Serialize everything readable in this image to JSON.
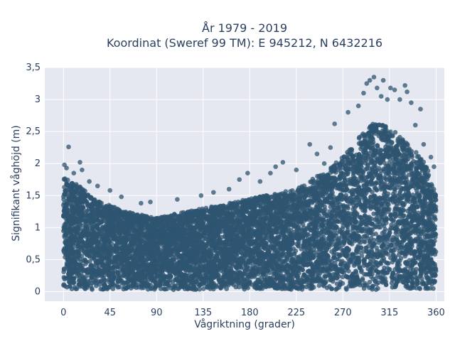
{
  "chart_data": {
    "type": "scatter",
    "title_line1": "År 1979 - 2019",
    "title_line2": "Koordinat (Sweref 99 TM): E 945212, N 6432216",
    "xlabel": "Vågriktning (grader)",
    "ylabel": "Signifikant våghöjd (m)",
    "xlim": [
      -18,
      368
    ],
    "ylim": [
      -0.15,
      3.5
    ],
    "x_ticks": [
      0,
      45,
      90,
      135,
      180,
      225,
      270,
      315,
      360
    ],
    "x_tick_labels": [
      "0",
      "45",
      "90",
      "135",
      "180",
      "225",
      "270",
      "315",
      "360"
    ],
    "y_ticks": [
      0,
      0.5,
      1,
      1.5,
      2,
      2.5,
      3,
      3.5
    ],
    "y_tick_labels": [
      "0",
      "0,5",
      "1",
      "1,5",
      "2",
      "2,5",
      "3",
      "3,5"
    ],
    "grid": true,
    "marker_color": "#2e5470",
    "plot_bg": "#e5e8f0",
    "envelope": {
      "x": [
        0,
        5,
        10,
        20,
        30,
        45,
        60,
        75,
        90,
        105,
        120,
        135,
        150,
        165,
        180,
        195,
        210,
        225,
        240,
        255,
        270,
        285,
        300,
        310,
        320,
        330,
        340,
        350,
        360
      ],
      "upper": [
        1.8,
        1.75,
        1.7,
        1.6,
        1.45,
        1.35,
        1.25,
        1.2,
        1.15,
        1.2,
        1.25,
        1.3,
        1.35,
        1.4,
        1.45,
        1.5,
        1.55,
        1.6,
        1.75,
        1.9,
        2.1,
        2.4,
        2.65,
        2.6,
        2.5,
        2.35,
        2.2,
        2.0,
        1.5
      ]
    },
    "points": [
      {
        "x": 5,
        "y": 2.26
      },
      {
        "x": 1,
        "y": 1.98
      },
      {
        "x": 3,
        "y": 1.93
      },
      {
        "x": 16,
        "y": 2.02
      },
      {
        "x": 18,
        "y": 1.9
      },
      {
        "x": 10,
        "y": 1.85
      },
      {
        "x": 25,
        "y": 1.72
      },
      {
        "x": 33,
        "y": 1.65
      },
      {
        "x": 45,
        "y": 1.58
      },
      {
        "x": 56,
        "y": 1.48
      },
      {
        "x": 75,
        "y": 1.38
      },
      {
        "x": 84,
        "y": 1.4
      },
      {
        "x": 110,
        "y": 1.44
      },
      {
        "x": 133,
        "y": 1.5
      },
      {
        "x": 145,
        "y": 1.55
      },
      {
        "x": 160,
        "y": 1.6
      },
      {
        "x": 170,
        "y": 1.75
      },
      {
        "x": 178,
        "y": 1.85
      },
      {
        "x": 190,
        "y": 1.72
      },
      {
        "x": 200,
        "y": 1.85
      },
      {
        "x": 205,
        "y": 1.95
      },
      {
        "x": 212,
        "y": 2.02
      },
      {
        "x": 225,
        "y": 1.9
      },
      {
        "x": 238,
        "y": 2.3
      },
      {
        "x": 245,
        "y": 2.15
      },
      {
        "x": 252,
        "y": 2.0
      },
      {
        "x": 258,
        "y": 2.25
      },
      {
        "x": 262,
        "y": 2.62
      },
      {
        "x": 275,
        "y": 2.8
      },
      {
        "x": 285,
        "y": 2.9
      },
      {
        "x": 290,
        "y": 3.1
      },
      {
        "x": 293,
        "y": 3.25
      },
      {
        "x": 296,
        "y": 3.3
      },
      {
        "x": 300,
        "y": 3.35
      },
      {
        "x": 303,
        "y": 3.18
      },
      {
        "x": 307,
        "y": 3.05
      },
      {
        "x": 309,
        "y": 3.3
      },
      {
        "x": 313,
        "y": 3.0
      },
      {
        "x": 316,
        "y": 3.18
      },
      {
        "x": 320,
        "y": 3.15
      },
      {
        "x": 325,
        "y": 3.0
      },
      {
        "x": 330,
        "y": 3.22
      },
      {
        "x": 332,
        "y": 3.12
      },
      {
        "x": 336,
        "y": 2.95
      },
      {
        "x": 345,
        "y": 2.85
      },
      {
        "x": 340,
        "y": 2.6
      },
      {
        "x": 348,
        "y": 2.3
      },
      {
        "x": 355,
        "y": 2.1
      },
      {
        "x": 358,
        "y": 1.95
      }
    ]
  }
}
